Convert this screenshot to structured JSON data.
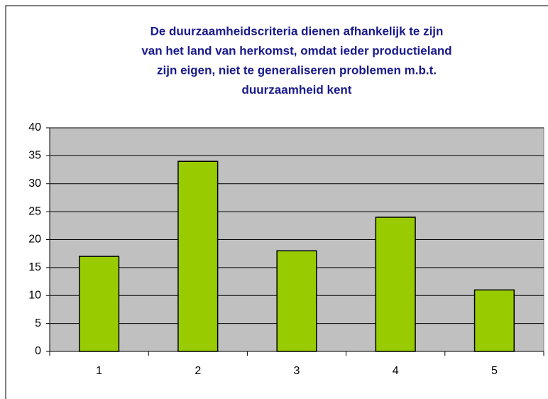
{
  "chart_data": {
    "type": "bar",
    "title": [
      "De duurzaamheidscriteria dienen afhankelijk te zijn",
      "van het land van herkomst, omdat ieder productieland",
      "zijn eigen, niet te generaliseren problemen m.b.t.",
      "duurzaamheid kent"
    ],
    "categories": [
      "1",
      "2",
      "3",
      "4",
      "5"
    ],
    "values": [
      17,
      34,
      18,
      24,
      11
    ],
    "color": "#99cc00",
    "ylim": [
      0,
      40
    ],
    "yticks": [
      0,
      5,
      10,
      15,
      20,
      25,
      30,
      35,
      40
    ],
    "grid": true
  }
}
